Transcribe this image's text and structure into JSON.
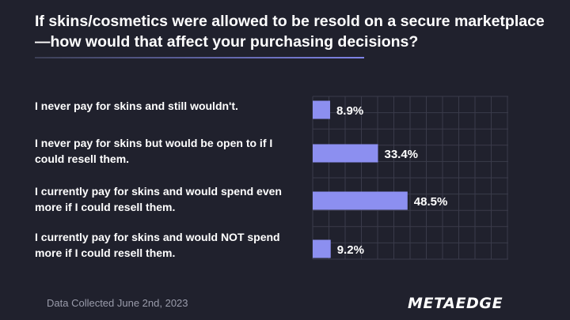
{
  "title": "If skins/cosmetics were allowed to be resold on a secure marketplace—how would that affect your purchasing decisions?",
  "footer": {
    "note": "Data Collected June 2nd, 2023",
    "logo_text": "METAEDGE"
  },
  "colors": {
    "background": "#20212d",
    "bar": "#8c8ff0",
    "grid": "#3a3b4a",
    "accent_line": "#7f84e8"
  },
  "chart_data": {
    "type": "bar",
    "orientation": "horizontal",
    "title": "If skins/cosmetics were allowed to be resold on a secure marketplace—how would that affect your purchasing decisions?",
    "categories": [
      "I never pay for skins and still wouldn't.",
      "I never pay for skins but would be open to if I could resell them.",
      "I currently pay for skins and would spend even more if I could resell them.",
      "I currently pay for skins and would NOT spend more if I could resell them."
    ],
    "values": [
      8.9,
      33.4,
      48.5,
      9.2
    ],
    "data_labels": [
      "8.9%",
      "33.4%",
      "48.5%",
      "9.2%"
    ],
    "xlim": [
      0,
      100
    ],
    "grid": true
  }
}
